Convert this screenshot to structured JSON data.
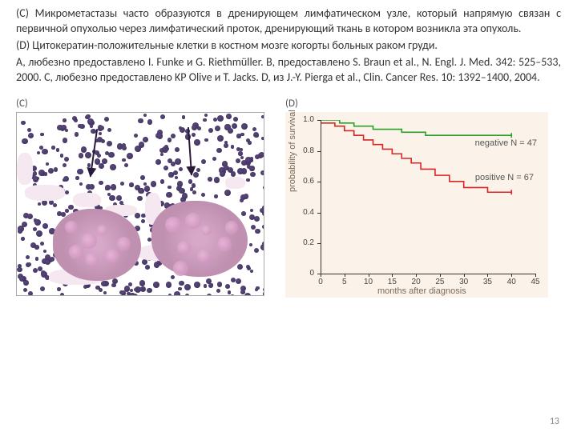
{
  "paragraphs": {
    "c": "(C) Микрометастазы часто образуются в дренирующем лимфатическом узле, который напрямую связан с первичной опухолью через лимфатический проток, дренирующий ткань в котором возникла эта опухоль.",
    "d": "(D)  Цитокератин-положительные клетки в костном мозге когорты больных раком груди.",
    "credits": "A, любезно предоставлено I. Funke и G. Riethmüller. B, предоставлено S. Braun et al., N. Engl. J. Med. 342: 525–533, 2000. C, любезно предоставлено KP Olive и T. Jacks. D, из J.-Y. Pierga et al., Clin. Cancer Res. 10: 1392–1400, 2004."
  },
  "figC": {
    "label": "(C)"
  },
  "figD": {
    "label": "(D)",
    "chart": {
      "type": "step-line",
      "background_color": "#fbf2e9",
      "xlabel": "months after diagnosis",
      "ylabel": "probability of survival",
      "xlim": [
        0,
        45
      ],
      "ylim": [
        0,
        1.0
      ],
      "xticks": [
        0,
        5,
        10,
        15,
        20,
        25,
        30,
        35,
        40,
        45
      ],
      "yticks": [
        0,
        0.2,
        0.4,
        0.6,
        0.8,
        1.0
      ],
      "axis_color": "#333333",
      "label_color": "#7a6a5a",
      "tick_fontsize": 10,
      "label_fontsize": 11,
      "series": {
        "negative": {
          "label": "negative N = 47",
          "color": "#2aa02a",
          "line_width": 1.6,
          "points": [
            [
              0,
              1.0
            ],
            [
              4,
              1.0
            ],
            [
              4,
              0.98
            ],
            [
              7,
              0.98
            ],
            [
              7,
              0.96
            ],
            [
              11,
              0.96
            ],
            [
              11,
              0.94
            ],
            [
              17,
              0.94
            ],
            [
              17,
              0.92
            ],
            [
              22,
              0.92
            ],
            [
              22,
              0.9
            ],
            [
              40,
              0.9
            ]
          ]
        },
        "positive": {
          "label": "positive N = 67",
          "color": "#d92525",
          "line_width": 1.6,
          "points": [
            [
              0,
              0.98
            ],
            [
              3,
              0.98
            ],
            [
              3,
              0.96
            ],
            [
              5,
              0.96
            ],
            [
              5,
              0.93
            ],
            [
              7,
              0.93
            ],
            [
              7,
              0.9
            ],
            [
              9,
              0.9
            ],
            [
              9,
              0.87
            ],
            [
              11,
              0.87
            ],
            [
              11,
              0.84
            ],
            [
              13,
              0.84
            ],
            [
              13,
              0.81
            ],
            [
              15,
              0.81
            ],
            [
              15,
              0.78
            ],
            [
              17,
              0.78
            ],
            [
              17,
              0.75
            ],
            [
              19,
              0.75
            ],
            [
              19,
              0.72
            ],
            [
              21,
              0.72
            ],
            [
              21,
              0.68
            ],
            [
              24,
              0.68
            ],
            [
              24,
              0.64
            ],
            [
              27,
              0.64
            ],
            [
              27,
              0.6
            ],
            [
              30,
              0.6
            ],
            [
              30,
              0.56
            ],
            [
              35,
              0.56
            ],
            [
              35,
              0.53
            ],
            [
              40,
              0.53
            ]
          ]
        }
      }
    }
  },
  "page_number": "13"
}
